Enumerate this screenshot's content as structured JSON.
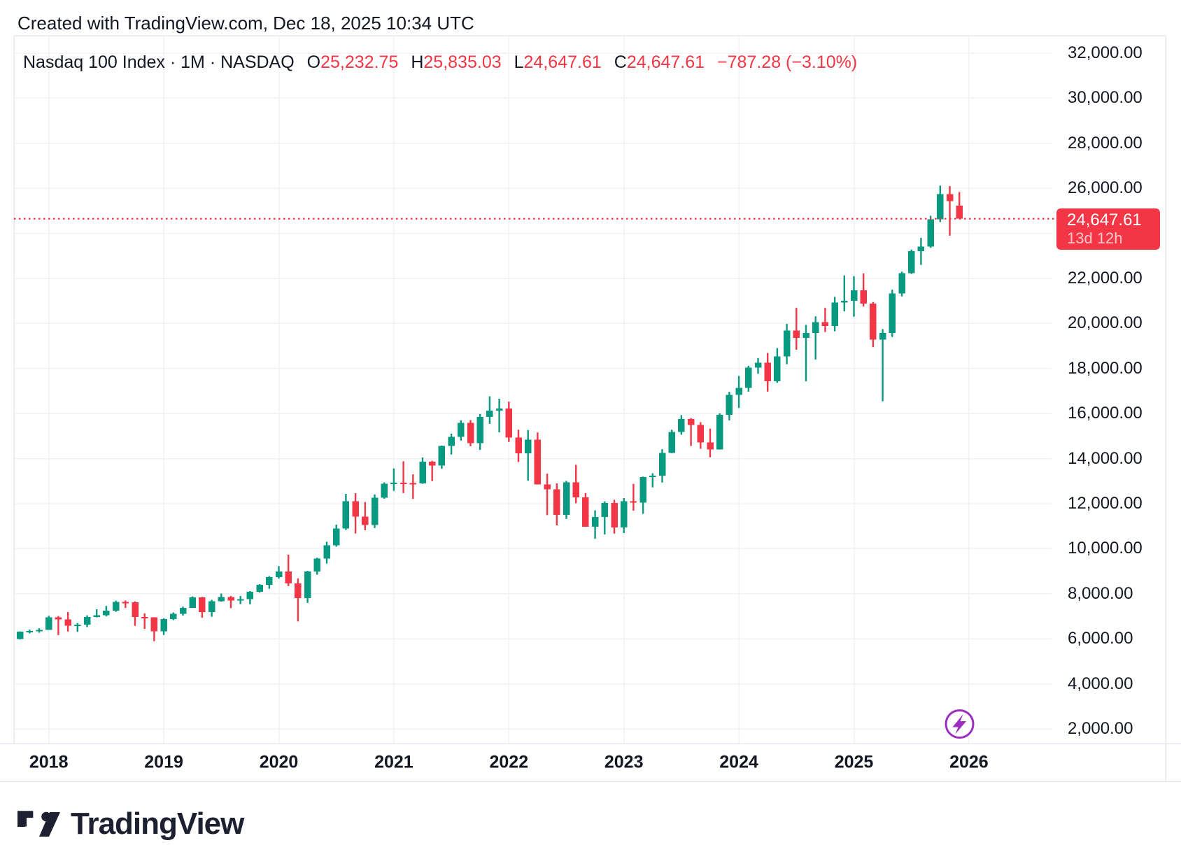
{
  "attribution": "Created with TradingView.com, Dec 18, 2025 10:34 UTC",
  "legend": {
    "symbol_title": "Nasdaq 100 Index · 1M · NASDAQ",
    "ohlc": [
      {
        "key": "O",
        "value": "25,232.75"
      },
      {
        "key": "H",
        "value": "25,835.03"
      },
      {
        "key": "L",
        "value": "24,647.61"
      },
      {
        "key": "C",
        "value": "24,647.61"
      }
    ],
    "change": "−787.28 (−3.10%)"
  },
  "price_axis": {
    "ticks": [
      {
        "label": "32,000.00",
        "value": 32000
      },
      {
        "label": "30,000.00",
        "value": 30000
      },
      {
        "label": "28,000.00",
        "value": 28000
      },
      {
        "label": "26,000.00",
        "value": 26000
      },
      {
        "label": "24,000.00",
        "value": 24000
      },
      {
        "label": "22,000.00",
        "value": 22000
      },
      {
        "label": "20,000.00",
        "value": 20000
      },
      {
        "label": "18,000.00",
        "value": 18000
      },
      {
        "label": "16,000.00",
        "value": 16000
      },
      {
        "label": "14,000.00",
        "value": 14000
      },
      {
        "label": "12,000.00",
        "value": 12000
      },
      {
        "label": "10,000.00",
        "value": 10000
      },
      {
        "label": "8,000.00",
        "value": 8000
      },
      {
        "label": "6,000.00",
        "value": 6000
      },
      {
        "label": "4,000.00",
        "value": 4000
      },
      {
        "label": "2,000.00",
        "value": 2000
      }
    ]
  },
  "time_axis": {
    "years": [
      "2018",
      "2019",
      "2020",
      "2021",
      "2022",
      "2023",
      "2024",
      "2025",
      "2026"
    ]
  },
  "price_line": {
    "value": 24647.61,
    "label": "24,647.61",
    "countdown": "13d 12h"
  },
  "marker": {
    "icon": "lightning-bolt"
  },
  "logo": {
    "text": "TradingView"
  },
  "colors": {
    "up": "#089981",
    "down": "#F23645",
    "accent_red": "#F23645",
    "text": "#131722",
    "grid": "#F0F2F5",
    "border": "#E4E7EE",
    "marker_purple": "#9B2EBF",
    "background": "#FFFFFF"
  },
  "chart_data": {
    "type": "candlestick",
    "symbol": "Nasdaq 100 Index",
    "interval": "1M",
    "exchange": "NASDAQ",
    "title": "Nasdaq 100 Index · 1M · NASDAQ",
    "last_bar": {
      "open": 25232.75,
      "high": 25835.03,
      "low": 24647.61,
      "close": 24647.61,
      "change": -787.28,
      "change_pct": -3.1
    },
    "price_gridline_step": 2000,
    "visible_price_range": [
      1350,
      32900
    ],
    "visible_time_range": [
      "2017-10",
      "2026-03"
    ],
    "last_price": 24647.61,
    "grid": true,
    "candles": [
      [
        "2017-10",
        5990,
        6330,
        5970,
        6310
      ],
      [
        "2017-11",
        6310,
        6410,
        6240,
        6341
      ],
      [
        "2017-12",
        6341,
        6465,
        6270,
        6396
      ],
      [
        "2018-01",
        6400,
        7023,
        6398,
        6949
      ],
      [
        "2018-02",
        6949,
        7010,
        6165,
        6855
      ],
      [
        "2018-03",
        6860,
        7186,
        6322,
        6581
      ],
      [
        "2018-04",
        6581,
        6700,
        6310,
        6625
      ],
      [
        "2018-05",
        6625,
        7041,
        6520,
        6969
      ],
      [
        "2018-06",
        6969,
        7310,
        6950,
        7041
      ],
      [
        "2018-07",
        7041,
        7460,
        7000,
        7242
      ],
      [
        "2018-08",
        7242,
        7691,
        7200,
        7631
      ],
      [
        "2018-09",
        7631,
        7700,
        7370,
        7627
      ],
      [
        "2018-10",
        7627,
        7660,
        6575,
        6966
      ],
      [
        "2018-11",
        6966,
        7130,
        6440,
        6949
      ],
      [
        "2018-12",
        6949,
        6960,
        5895,
        6330
      ],
      [
        "2019-01",
        6330,
        6910,
        6170,
        6869
      ],
      [
        "2019-02",
        6869,
        7170,
        6830,
        7102
      ],
      [
        "2019-03",
        7102,
        7430,
        7030,
        7379
      ],
      [
        "2019-04",
        7379,
        7880,
        7370,
        7846
      ],
      [
        "2019-05",
        7846,
        7860,
        6937,
        7192
      ],
      [
        "2019-06",
        7192,
        7730,
        6980,
        7671
      ],
      [
        "2019-07",
        7671,
        8010,
        7650,
        7848
      ],
      [
        "2019-08",
        7848,
        7900,
        7360,
        7691
      ],
      [
        "2019-09",
        7691,
        7900,
        7540,
        7766
      ],
      [
        "2019-10",
        7766,
        8120,
        7530,
        8083
      ],
      [
        "2019-11",
        8083,
        8430,
        8050,
        8403
      ],
      [
        "2019-12",
        8403,
        8785,
        8220,
        8733
      ],
      [
        "2020-01",
        8733,
        9230,
        8670,
        8991
      ],
      [
        "2020-02",
        8991,
        9736,
        8340,
        8461
      ],
      [
        "2020-03",
        8461,
        8680,
        6772,
        7813
      ],
      [
        "2020-04",
        7813,
        9020,
        7591,
        8984
      ],
      [
        "2020-05",
        8984,
        9598,
        8847,
        9556
      ],
      [
        "2020-06",
        9556,
        10310,
        9340,
        10156
      ],
      [
        "2020-07",
        10156,
        11070,
        10090,
        10905
      ],
      [
        "2020-08",
        10905,
        12439,
        10830,
        12110
      ],
      [
        "2020-09",
        12110,
        12465,
        10678,
        11418
      ],
      [
        "2020-10",
        11418,
        12070,
        10822,
        11052
      ],
      [
        "2020-11",
        11052,
        12410,
        10920,
        12268
      ],
      [
        "2020-12",
        12268,
        12940,
        12220,
        12888
      ],
      [
        "2021-01",
        12888,
        13564,
        12570,
        12925
      ],
      [
        "2021-02",
        12925,
        13880,
        12470,
        12909
      ],
      [
        "2021-03",
        12909,
        13300,
        12210,
        12895
      ],
      [
        "2021-04",
        12895,
        14050,
        12880,
        13860
      ],
      [
        "2021-05",
        13860,
        13900,
        13000,
        13686
      ],
      [
        "2021-06",
        13686,
        14580,
        13550,
        14555
      ],
      [
        "2021-07",
        14555,
        15110,
        14180,
        14960
      ],
      [
        "2021-08",
        14960,
        15700,
        14800,
        15582
      ],
      [
        "2021-09",
        15582,
        15710,
        14550,
        14689
      ],
      [
        "2021-10",
        14689,
        15980,
        14390,
        15850
      ],
      [
        "2021-11",
        15850,
        16765,
        15543,
        16136
      ],
      [
        "2021-12",
        16136,
        16660,
        15165,
        16221
      ],
      [
        "2022-01",
        16221,
        16530,
        14740,
        14930
      ],
      [
        "2022-02",
        14930,
        15280,
        13850,
        14238
      ],
      [
        "2022-03",
        14238,
        15270,
        13020,
        14839
      ],
      [
        "2022-04",
        14839,
        15160,
        12850,
        12855
      ],
      [
        "2022-05",
        12855,
        13330,
        11492,
        12642
      ],
      [
        "2022-06",
        12642,
        12900,
        11037,
        11504
      ],
      [
        "2022-07",
        11504,
        13010,
        11322,
        12948
      ],
      [
        "2022-08",
        12948,
        13720,
        12022,
        12272
      ],
      [
        "2022-09",
        12272,
        12470,
        10969,
        10971
      ],
      [
        "2022-10",
        10971,
        11700,
        10440,
        11406
      ],
      [
        "2022-11",
        11406,
        12100,
        10632,
        12030
      ],
      [
        "2022-12",
        12030,
        12170,
        10671,
        10940
      ],
      [
        "2023-01",
        10940,
        12250,
        10696,
        12101
      ],
      [
        "2023-02",
        12101,
        12880,
        11690,
        12042
      ],
      [
        "2023-03",
        12042,
        13200,
        11550,
        13181
      ],
      [
        "2023-04",
        13181,
        13350,
        12724,
        13245
      ],
      [
        "2023-05",
        13245,
        14420,
        12938,
        14254
      ],
      [
        "2023-06",
        14254,
        15280,
        14240,
        15179
      ],
      [
        "2023-07",
        15179,
        15932,
        15060,
        15757
      ],
      [
        "2023-08",
        15757,
        15800,
        14560,
        15501
      ],
      [
        "2023-09",
        15501,
        15618,
        14432,
        14715
      ],
      [
        "2023-10",
        14715,
        15330,
        14058,
        14410
      ],
      [
        "2023-11",
        14410,
        16010,
        14400,
        15948
      ],
      [
        "2023-12",
        15948,
        16970,
        15695,
        16826
      ],
      [
        "2024-01",
        16826,
        17670,
        16249,
        17137
      ],
      [
        "2024-02",
        17137,
        18120,
        16973,
        18044
      ],
      [
        "2024-03",
        18044,
        18465,
        17766,
        18255
      ],
      [
        "2024-04",
        18255,
        18690,
        16974,
        17441
      ],
      [
        "2024-05",
        17441,
        18908,
        17368,
        18537
      ],
      [
        "2024-06",
        18537,
        19980,
        18190,
        19683
      ],
      [
        "2024-07",
        19683,
        20691,
        18833,
        19362
      ],
      [
        "2024-08",
        19362,
        19939,
        17435,
        19575
      ],
      [
        "2024-09",
        19575,
        20315,
        18400,
        20061
      ],
      [
        "2024-10",
        20061,
        20690,
        19622,
        19890
      ],
      [
        "2024-11",
        19890,
        21182,
        19650,
        20930
      ],
      [
        "2024-12",
        20930,
        22133,
        20538,
        21012
      ],
      [
        "2025-01",
        21012,
        22100,
        20300,
        21478
      ],
      [
        "2025-02",
        21478,
        22222,
        20750,
        20884
      ],
      [
        "2025-03",
        20884,
        20950,
        18950,
        19278
      ],
      [
        "2025-04",
        19278,
        19750,
        16542,
        19571
      ],
      [
        "2025-05",
        19571,
        21500,
        19400,
        21340
      ],
      [
        "2025-06",
        21340,
        22300,
        21200,
        22237
      ],
      [
        "2025-07",
        22237,
        23280,
        22200,
        23218
      ],
      [
        "2025-08",
        23218,
        23800,
        22600,
        23415
      ],
      [
        "2025-09",
        23415,
        24780,
        23360,
        24626
      ],
      [
        "2025-10",
        24626,
        26120,
        24500,
        25750
      ],
      [
        "2025-11",
        25750,
        26100,
        23900,
        25434.89
      ],
      [
        "2025-12",
        25232.75,
        25835.03,
        24647.61,
        24647.61
      ]
    ]
  }
}
